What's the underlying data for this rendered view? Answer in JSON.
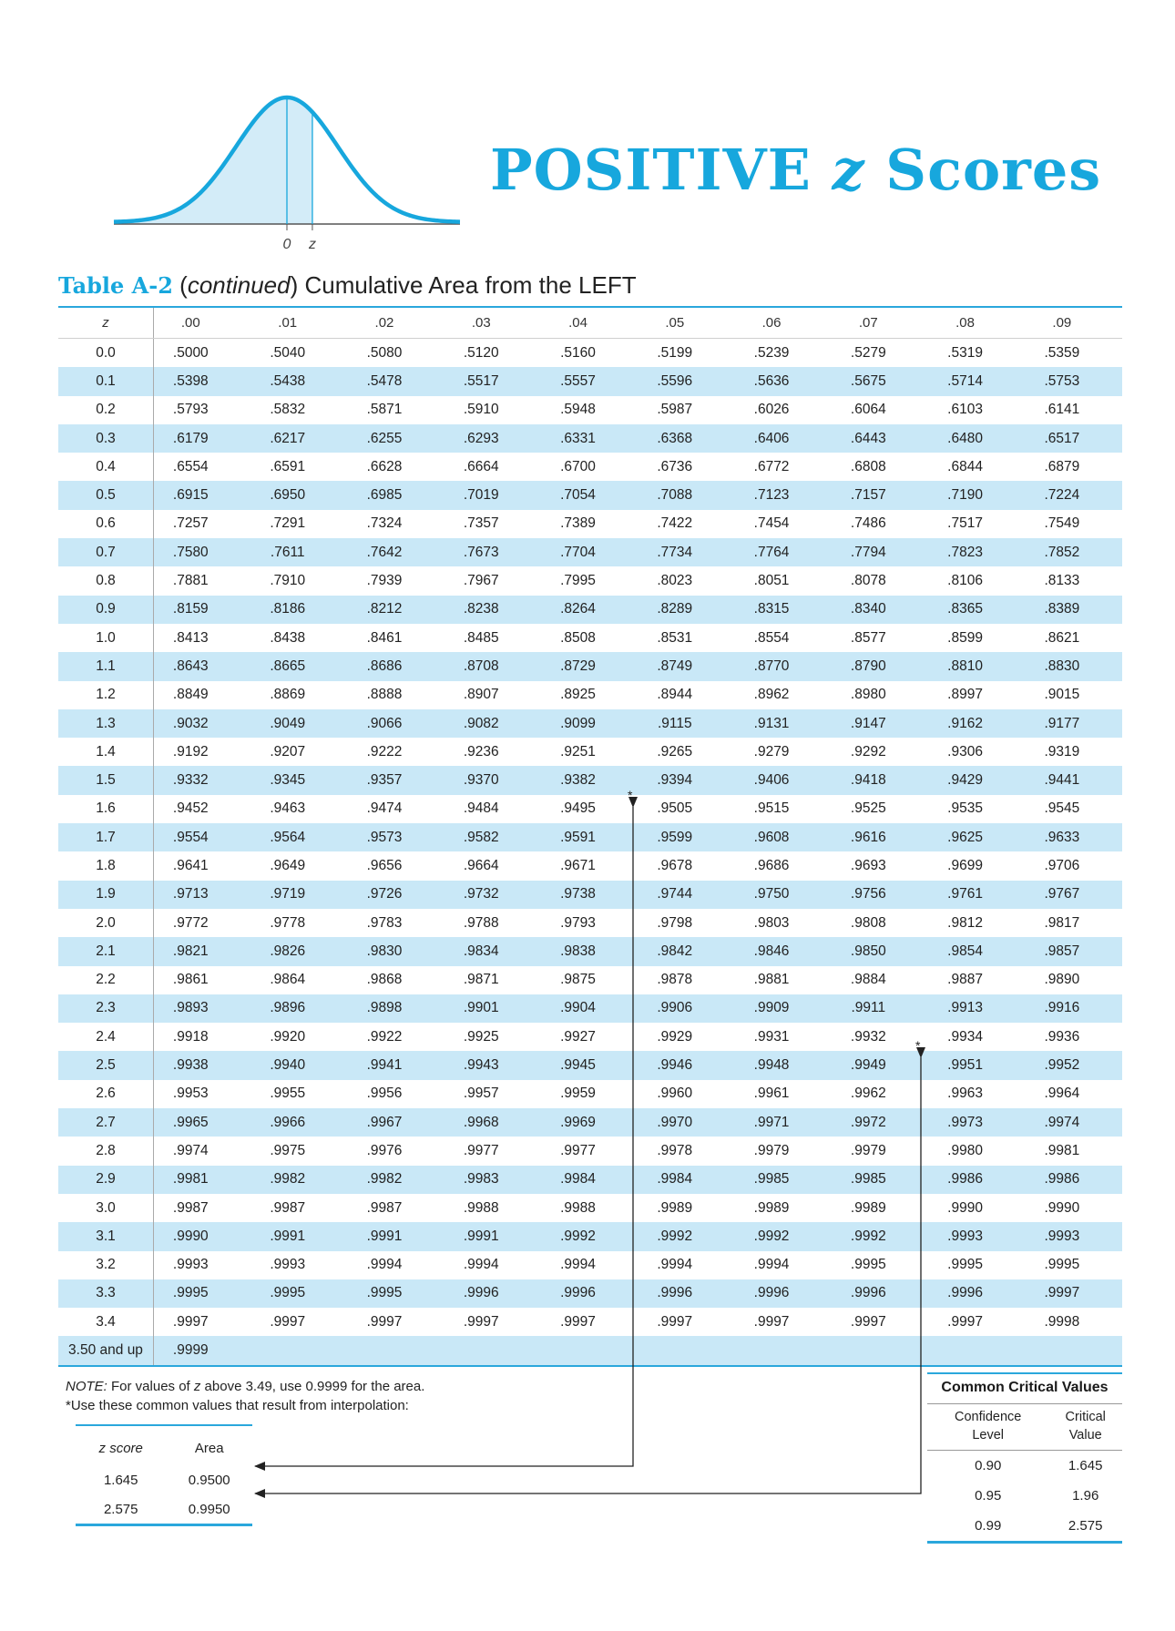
{
  "figure": {
    "tick_zero": "0",
    "tick_z": "z",
    "colors": {
      "curve": "#17a7dd",
      "fill": "#d3ecf8"
    }
  },
  "title": {
    "main": "POSITIVE ",
    "z": "z",
    "rest": " Scores"
  },
  "caption": {
    "label": "Table A-2",
    "continued": "continued",
    "rest": "Cumulative Area from the LEFT"
  },
  "table": {
    "headers": [
      "z",
      ".00",
      ".01",
      ".02",
      ".03",
      ".04",
      ".05",
      ".06",
      ".07",
      ".08",
      ".09"
    ],
    "rows": [
      {
        "z": "0.0",
        "v": [
          ".5000",
          ".5040",
          ".5080",
          ".5120",
          ".5160",
          ".5199",
          ".5239",
          ".5279",
          ".5319",
          ".5359"
        ]
      },
      {
        "z": "0.1",
        "v": [
          ".5398",
          ".5438",
          ".5478",
          ".5517",
          ".5557",
          ".5596",
          ".5636",
          ".5675",
          ".5714",
          ".5753"
        ]
      },
      {
        "z": "0.2",
        "v": [
          ".5793",
          ".5832",
          ".5871",
          ".5910",
          ".5948",
          ".5987",
          ".6026",
          ".6064",
          ".6103",
          ".6141"
        ]
      },
      {
        "z": "0.3",
        "v": [
          ".6179",
          ".6217",
          ".6255",
          ".6293",
          ".6331",
          ".6368",
          ".6406",
          ".6443",
          ".6480",
          ".6517"
        ]
      },
      {
        "z": "0.4",
        "v": [
          ".6554",
          ".6591",
          ".6628",
          ".6664",
          ".6700",
          ".6736",
          ".6772",
          ".6808",
          ".6844",
          ".6879"
        ]
      },
      {
        "z": "0.5",
        "v": [
          ".6915",
          ".6950",
          ".6985",
          ".7019",
          ".7054",
          ".7088",
          ".7123",
          ".7157",
          ".7190",
          ".7224"
        ]
      },
      {
        "z": "0.6",
        "v": [
          ".7257",
          ".7291",
          ".7324",
          ".7357",
          ".7389",
          ".7422",
          ".7454",
          ".7486",
          ".7517",
          ".7549"
        ]
      },
      {
        "z": "0.7",
        "v": [
          ".7580",
          ".7611",
          ".7642",
          ".7673",
          ".7704",
          ".7734",
          ".7764",
          ".7794",
          ".7823",
          ".7852"
        ]
      },
      {
        "z": "0.8",
        "v": [
          ".7881",
          ".7910",
          ".7939",
          ".7967",
          ".7995",
          ".8023",
          ".8051",
          ".8078",
          ".8106",
          ".8133"
        ]
      },
      {
        "z": "0.9",
        "v": [
          ".8159",
          ".8186",
          ".8212",
          ".8238",
          ".8264",
          ".8289",
          ".8315",
          ".8340",
          ".8365",
          ".8389"
        ]
      },
      {
        "z": "1.0",
        "v": [
          ".8413",
          ".8438",
          ".8461",
          ".8485",
          ".8508",
          ".8531",
          ".8554",
          ".8577",
          ".8599",
          ".8621"
        ]
      },
      {
        "z": "1.1",
        "v": [
          ".8643",
          ".8665",
          ".8686",
          ".8708",
          ".8729",
          ".8749",
          ".8770",
          ".8790",
          ".8810",
          ".8830"
        ]
      },
      {
        "z": "1.2",
        "v": [
          ".8849",
          ".8869",
          ".8888",
          ".8907",
          ".8925",
          ".8944",
          ".8962",
          ".8980",
          ".8997",
          ".9015"
        ]
      },
      {
        "z": "1.3",
        "v": [
          ".9032",
          ".9049",
          ".9066",
          ".9082",
          ".9099",
          ".9115",
          ".9131",
          ".9147",
          ".9162",
          ".9177"
        ]
      },
      {
        "z": "1.4",
        "v": [
          ".9192",
          ".9207",
          ".9222",
          ".9236",
          ".9251",
          ".9265",
          ".9279",
          ".9292",
          ".9306",
          ".9319"
        ]
      },
      {
        "z": "1.5",
        "v": [
          ".9332",
          ".9345",
          ".9357",
          ".9370",
          ".9382",
          ".9394",
          ".9406",
          ".9418",
          ".9429",
          ".9441"
        ]
      },
      {
        "z": "1.6",
        "v": [
          ".9452",
          ".9463",
          ".9474",
          ".9484",
          ".9495",
          ".9505",
          ".9515",
          ".9525",
          ".9535",
          ".9545"
        ]
      },
      {
        "z": "1.7",
        "v": [
          ".9554",
          ".9564",
          ".9573",
          ".9582",
          ".9591",
          ".9599",
          ".9608",
          ".9616",
          ".9625",
          ".9633"
        ]
      },
      {
        "z": "1.8",
        "v": [
          ".9641",
          ".9649",
          ".9656",
          ".9664",
          ".9671",
          ".9678",
          ".9686",
          ".9693",
          ".9699",
          ".9706"
        ]
      },
      {
        "z": "1.9",
        "v": [
          ".9713",
          ".9719",
          ".9726",
          ".9732",
          ".9738",
          ".9744",
          ".9750",
          ".9756",
          ".9761",
          ".9767"
        ]
      },
      {
        "z": "2.0",
        "v": [
          ".9772",
          ".9778",
          ".9783",
          ".9788",
          ".9793",
          ".9798",
          ".9803",
          ".9808",
          ".9812",
          ".9817"
        ]
      },
      {
        "z": "2.1",
        "v": [
          ".9821",
          ".9826",
          ".9830",
          ".9834",
          ".9838",
          ".9842",
          ".9846",
          ".9850",
          ".9854",
          ".9857"
        ]
      },
      {
        "z": "2.2",
        "v": [
          ".9861",
          ".9864",
          ".9868",
          ".9871",
          ".9875",
          ".9878",
          ".9881",
          ".9884",
          ".9887",
          ".9890"
        ]
      },
      {
        "z": "2.3",
        "v": [
          ".9893",
          ".9896",
          ".9898",
          ".9901",
          ".9904",
          ".9906",
          ".9909",
          ".9911",
          ".9913",
          ".9916"
        ]
      },
      {
        "z": "2.4",
        "v": [
          ".9918",
          ".9920",
          ".9922",
          ".9925",
          ".9927",
          ".9929",
          ".9931",
          ".9932",
          ".9934",
          ".9936"
        ]
      },
      {
        "z": "2.5",
        "v": [
          ".9938",
          ".9940",
          ".9941",
          ".9943",
          ".9945",
          ".9946",
          ".9948",
          ".9949",
          ".9951",
          ".9952"
        ]
      },
      {
        "z": "2.6",
        "v": [
          ".9953",
          ".9955",
          ".9956",
          ".9957",
          ".9959",
          ".9960",
          ".9961",
          ".9962",
          ".9963",
          ".9964"
        ]
      },
      {
        "z": "2.7",
        "v": [
          ".9965",
          ".9966",
          ".9967",
          ".9968",
          ".9969",
          ".9970",
          ".9971",
          ".9972",
          ".9973",
          ".9974"
        ]
      },
      {
        "z": "2.8",
        "v": [
          ".9974",
          ".9975",
          ".9976",
          ".9977",
          ".9977",
          ".9978",
          ".9979",
          ".9979",
          ".9980",
          ".9981"
        ]
      },
      {
        "z": "2.9",
        "v": [
          ".9981",
          ".9982",
          ".9982",
          ".9983",
          ".9984",
          ".9984",
          ".9985",
          ".9985",
          ".9986",
          ".9986"
        ]
      },
      {
        "z": "3.0",
        "v": [
          ".9987",
          ".9987",
          ".9987",
          ".9988",
          ".9988",
          ".9989",
          ".9989",
          ".9989",
          ".9990",
          ".9990"
        ]
      },
      {
        "z": "3.1",
        "v": [
          ".9990",
          ".9991",
          ".9991",
          ".9991",
          ".9992",
          ".9992",
          ".9992",
          ".9992",
          ".9993",
          ".9993"
        ]
      },
      {
        "z": "3.2",
        "v": [
          ".9993",
          ".9993",
          ".9994",
          ".9994",
          ".9994",
          ".9994",
          ".9994",
          ".9995",
          ".9995",
          ".9995"
        ]
      },
      {
        "z": "3.3",
        "v": [
          ".9995",
          ".9995",
          ".9995",
          ".9996",
          ".9996",
          ".9996",
          ".9996",
          ".9996",
          ".9996",
          ".9997"
        ]
      },
      {
        "z": "3.4",
        "v": [
          ".9997",
          ".9997",
          ".9997",
          ".9997",
          ".9997",
          ".9997",
          ".9997",
          ".9997",
          ".9997",
          ".9998"
        ]
      },
      {
        "z": "3.50 and up",
        "v": [
          ".9999",
          "",
          "",
          "",
          "",
          "",
          "",
          "",
          "",
          ""
        ]
      }
    ],
    "stars": {
      "star_a": "*",
      "star_b": "*"
    }
  },
  "note": {
    "note_label": "NOTE:",
    "line1_a": " For values of ",
    "line1_z": "z",
    "line1_b": " above 3.49, use 0.9999 for the area.",
    "line2": "*Use these common values that result from interpolation:"
  },
  "interpolation": {
    "headers": [
      "z score",
      "Area"
    ],
    "rows": [
      [
        "1.645",
        "0.9500"
      ],
      [
        "2.575",
        "0.9950"
      ]
    ]
  },
  "critical": {
    "title": "Common Critical Values",
    "header_confidence": [
      "Confidence",
      "Level"
    ],
    "header_critical": [
      "Critical",
      "Value"
    ],
    "rows": [
      [
        "0.90",
        "1.645"
      ],
      [
        "0.95",
        "1.96"
      ],
      [
        "0.99",
        "2.575"
      ]
    ]
  }
}
